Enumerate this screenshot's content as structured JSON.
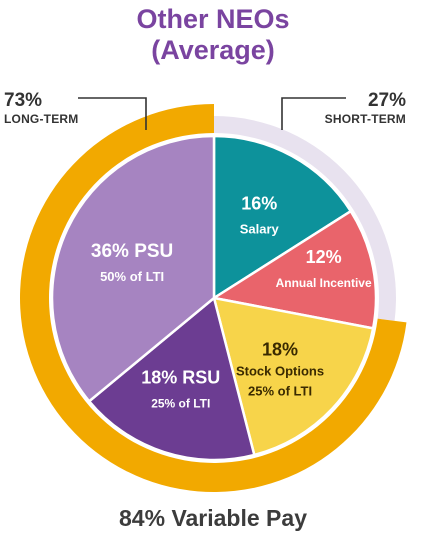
{
  "title": [
    "Other NEOs",
    "(Average)"
  ],
  "callouts": {
    "long": {
      "pct": "73%",
      "label": "LONG-TERM"
    },
    "short": {
      "pct": "27%",
      "label": "SHORT-TERM"
    }
  },
  "footer": "84% Variable Pay",
  "colors": {
    "title": "#7a44a0",
    "long_ring": "#f2a900",
    "short_ring": "#e8e2ef",
    "salary": "#0d929b",
    "annual_incentive": "#e9646b",
    "stock_options": "#f7d44a",
    "rsu": "#6c3d92",
    "psu": "#a684c1"
  },
  "chart_data": {
    "type": "pie",
    "slices": [
      {
        "id": "salary",
        "value": 16,
        "color": "#0d929b",
        "label_lines": [
          "16%",
          "Salary"
        ],
        "text_color": "#ffffff"
      },
      {
        "id": "annual_incentive",
        "value": 12,
        "color": "#e9646b",
        "label_lines": [
          "12%",
          "Annual   Incentive"
        ],
        "text_color": "#ffffff"
      },
      {
        "id": "stock_options",
        "value": 18,
        "color": "#f7d44a",
        "label_lines": [
          "18%",
          "Stock Options",
          "25% of LTI"
        ],
        "text_color": "#3a2a00"
      },
      {
        "id": "rsu",
        "value": 18,
        "color": "#6c3d92",
        "label_lines": [
          "18% RSU",
          "25% of LTI"
        ],
        "text_color": "#ffffff"
      },
      {
        "id": "psu",
        "value": 36,
        "color": "#a684c1",
        "label_lines": [
          "36% PSU",
          "50% of LTI"
        ],
        "text_color": "#ffffff"
      }
    ],
    "outer_ring": [
      {
        "id": "short_term",
        "value": 27,
        "color": "#e8e2ef",
        "label": "SHORT-TERM",
        "pct": "27%"
      },
      {
        "id": "long_term",
        "value": 73,
        "color": "#f2a900",
        "label": "LONG-TERM",
        "pct": "73%"
      }
    ],
    "start": "top",
    "direction": "clockwise"
  }
}
